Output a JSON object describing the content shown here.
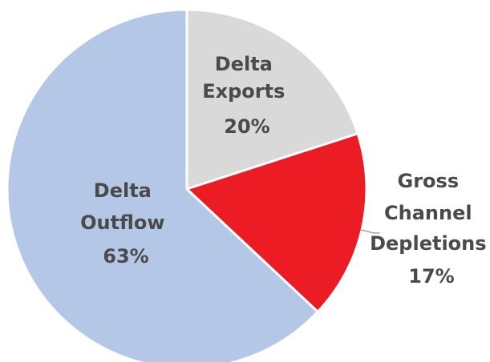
{
  "chart_data": {
    "type": "pie",
    "title": "",
    "slices": [
      {
        "label_lines": [
          "Delta",
          "Exports"
        ],
        "percent_label": "20%",
        "value": 20,
        "color": "#d9d9d9"
      },
      {
        "label_lines": [
          "Gross",
          "Channel",
          "Depletions"
        ],
        "percent_label": "17%",
        "value": 17,
        "color": "#ec1c24"
      },
      {
        "label_lines": [
          "Delta",
          "Outflow"
        ],
        "percent_label": "63%",
        "value": 63,
        "color": "#b4c7e7"
      }
    ],
    "start_angle_deg": 0,
    "direction": "clockwise",
    "border_color": "#ffffff",
    "leader_line_color": "#a6a6a6",
    "legend": "none"
  }
}
